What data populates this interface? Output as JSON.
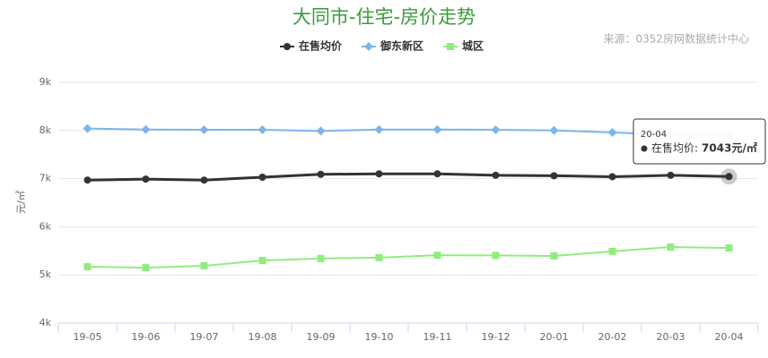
{
  "chart_data": {
    "type": "line",
    "title": "大同市-住宅-房价走势",
    "source": "来源：0352房网数据统计中心",
    "y_label": "元/㎡",
    "categories": [
      "19-05",
      "19-06",
      "19-07",
      "19-08",
      "19-09",
      "19-10",
      "19-11",
      "19-12",
      "20-01",
      "20-02",
      "20-03",
      "20-04"
    ],
    "series": [
      {
        "name": "在售均价",
        "color": "#333333",
        "marker": "circle",
        "values": [
          6970,
          6990,
          6970,
          7030,
          7090,
          7100,
          7100,
          7070,
          7060,
          7040,
          7070,
          7043
        ]
      },
      {
        "name": "御东新区",
        "color": "#7cb5ec",
        "marker": "diamond",
        "values": [
          8040,
          8020,
          8015,
          8015,
          7990,
          8020,
          8020,
          8015,
          8000,
          7960,
          7910,
          7910
        ]
      },
      {
        "name": "城区",
        "color": "#90ed7d",
        "marker": "square",
        "values": [
          5170,
          5150,
          5190,
          5300,
          5340,
          5360,
          5410,
          5405,
          5395,
          5490,
          5580,
          5560
        ]
      }
    ],
    "ylim": [
      4000,
      9000
    ],
    "yticks": [
      {
        "value": 4000,
        "label": "4k"
      },
      {
        "value": 5000,
        "label": "5k"
      },
      {
        "value": 6000,
        "label": "6k"
      },
      {
        "value": 7000,
        "label": "7k"
      },
      {
        "value": 8000,
        "label": "8k"
      },
      {
        "value": 9000,
        "label": "9k"
      }
    ],
    "grid": true,
    "tooltip": {
      "x": "20-04",
      "series": "在售均价:",
      "text": "7043元/㎡"
    }
  }
}
